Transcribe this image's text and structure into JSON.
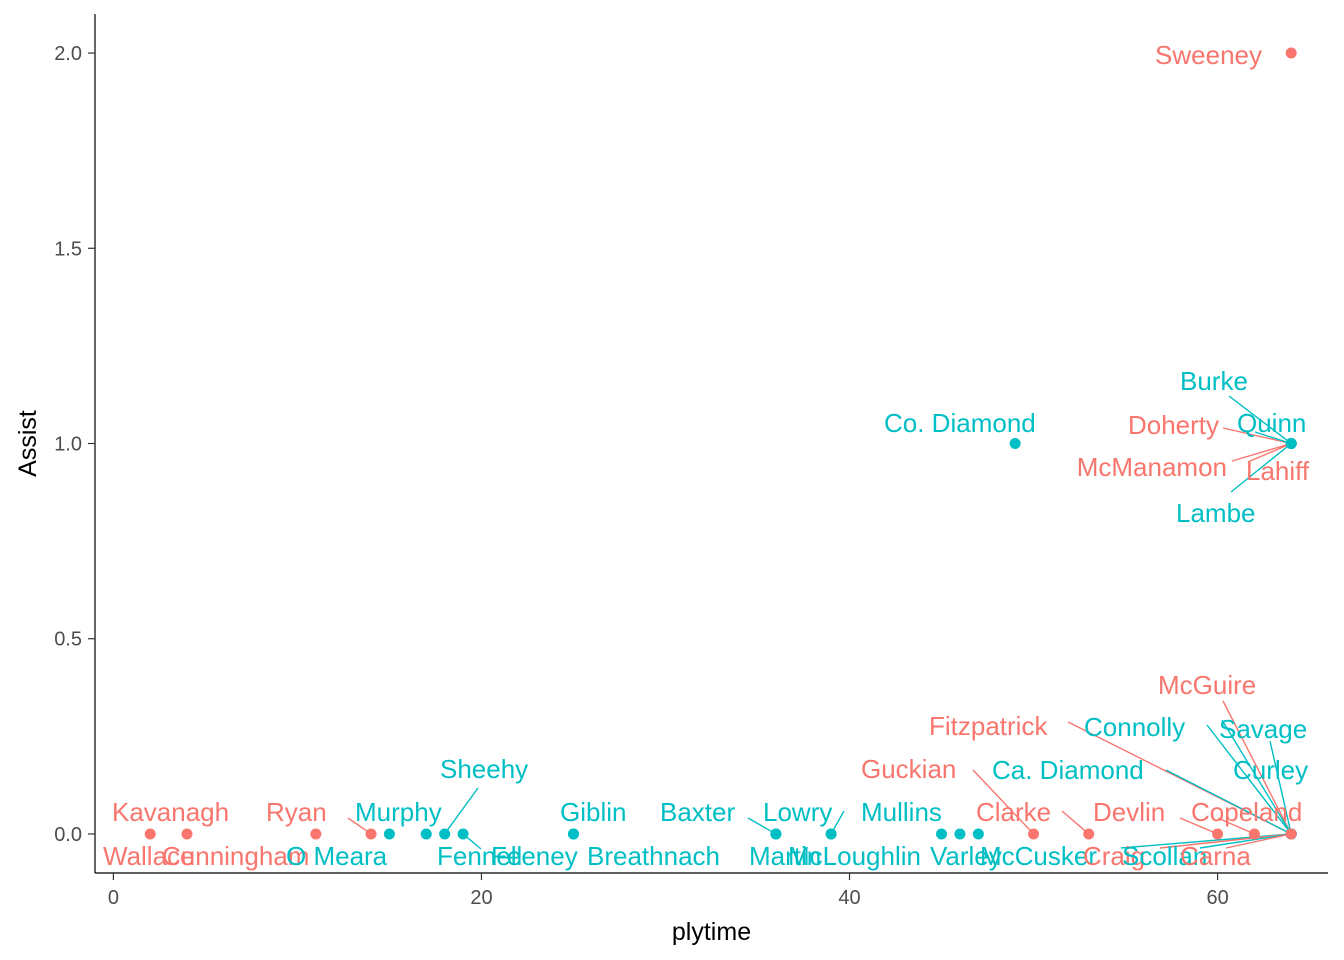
{
  "chart_data": {
    "type": "scatter",
    "title": "",
    "xlabel": "plytime",
    "ylabel": "Assist",
    "xlim": [
      -1,
      66
    ],
    "ylim": [
      -0.1,
      2.1
    ],
    "x_ticks": [
      0,
      20,
      40,
      60
    ],
    "y_ticks": [
      0.0,
      0.5,
      1.0,
      1.5,
      2.0
    ],
    "x_tick_labels": [
      "0",
      "20",
      "40",
      "60"
    ],
    "y_tick_labels": [
      "0.0",
      "0.5",
      "1.0",
      "1.5",
      "2.0"
    ],
    "grid": false,
    "legend": "none",
    "group_colors": {
      "red": "#F8766D",
      "teal": "#00BFC4"
    },
    "points": [
      {
        "name": "Wallace",
        "x": 2,
        "y": 0,
        "group": "red"
      },
      {
        "name": "Kavanagh",
        "x": 4,
        "y": 0,
        "group": "red"
      },
      {
        "name": "Cunningham",
        "x": 11,
        "y": 0,
        "group": "red"
      },
      {
        "name": "Ryan",
        "x": 14,
        "y": 0,
        "group": "red"
      },
      {
        "name": "O Meara",
        "x": 15,
        "y": 0,
        "group": "teal"
      },
      {
        "name": "Murphy",
        "x": 17,
        "y": 0,
        "group": "teal"
      },
      {
        "name": "Sheehy",
        "x": 18,
        "y": 0,
        "group": "teal"
      },
      {
        "name": "Fennell",
        "x": 19,
        "y": 0,
        "group": "teal"
      },
      {
        "name": "Feeney",
        "x": 25,
        "y": 0,
        "group": "teal"
      },
      {
        "name": "Giblin",
        "x": 25,
        "y": 0,
        "group": "teal"
      },
      {
        "name": "Breathnach",
        "x": 36,
        "y": 0,
        "group": "teal"
      },
      {
        "name": "Baxter",
        "x": 36,
        "y": 0,
        "group": "teal"
      },
      {
        "name": "Martin",
        "x": 39,
        "y": 0,
        "group": "teal"
      },
      {
        "name": "Lowry",
        "x": 39,
        "y": 0,
        "group": "teal"
      },
      {
        "name": "McLoughlin",
        "x": 45,
        "y": 0,
        "group": "teal"
      },
      {
        "name": "Mullins",
        "x": 46,
        "y": 0,
        "group": "teal"
      },
      {
        "name": "Varley",
        "x": 47,
        "y": 0,
        "group": "teal"
      },
      {
        "name": "Co. Diamond",
        "x": 49,
        "y": 1,
        "group": "teal"
      },
      {
        "name": "Guckian",
        "x": 50,
        "y": 0,
        "group": "red"
      },
      {
        "name": "Clarke",
        "x": 53,
        "y": 0,
        "group": "red"
      },
      {
        "name": "Devlin",
        "x": 60,
        "y": 0,
        "group": "red"
      },
      {
        "name": "Copeland",
        "x": 62,
        "y": 0,
        "group": "red"
      },
      {
        "name": "Sweeney",
        "x": 64,
        "y": 2,
        "group": "red"
      },
      {
        "name": "Doherty",
        "x": 64,
        "y": 1,
        "group": "red"
      },
      {
        "name": "McManamon",
        "x": 64,
        "y": 1,
        "group": "red"
      },
      {
        "name": "Lahiff",
        "x": 64,
        "y": 1,
        "group": "red"
      },
      {
        "name": "Burke",
        "x": 64,
        "y": 1,
        "group": "teal"
      },
      {
        "name": "Quinn",
        "x": 64,
        "y": 1,
        "group": "teal"
      },
      {
        "name": "Lambe",
        "x": 64,
        "y": 1,
        "group": "teal"
      },
      {
        "name": "McGuire",
        "x": 64,
        "y": 0,
        "group": "red"
      },
      {
        "name": "Fitzpatrick",
        "x": 64,
        "y": 0,
        "group": "red"
      },
      {
        "name": "Connolly",
        "x": 64,
        "y": 0,
        "group": "teal"
      },
      {
        "name": "Savage",
        "x": 64,
        "y": 0,
        "group": "teal"
      },
      {
        "name": "Ca. Diamond",
        "x": 64,
        "y": 0,
        "group": "teal"
      },
      {
        "name": "Curley",
        "x": 64,
        "y": 0,
        "group": "teal"
      },
      {
        "name": "McCusker",
        "x": 64,
        "y": 0,
        "group": "teal"
      },
      {
        "name": "Craig",
        "x": 64,
        "y": 0,
        "group": "red"
      },
      {
        "name": "Scollan",
        "x": 64,
        "y": 0,
        "group": "teal"
      },
      {
        "name": "Carna",
        "x": 64,
        "y": 0,
        "group": "red"
      }
    ]
  }
}
